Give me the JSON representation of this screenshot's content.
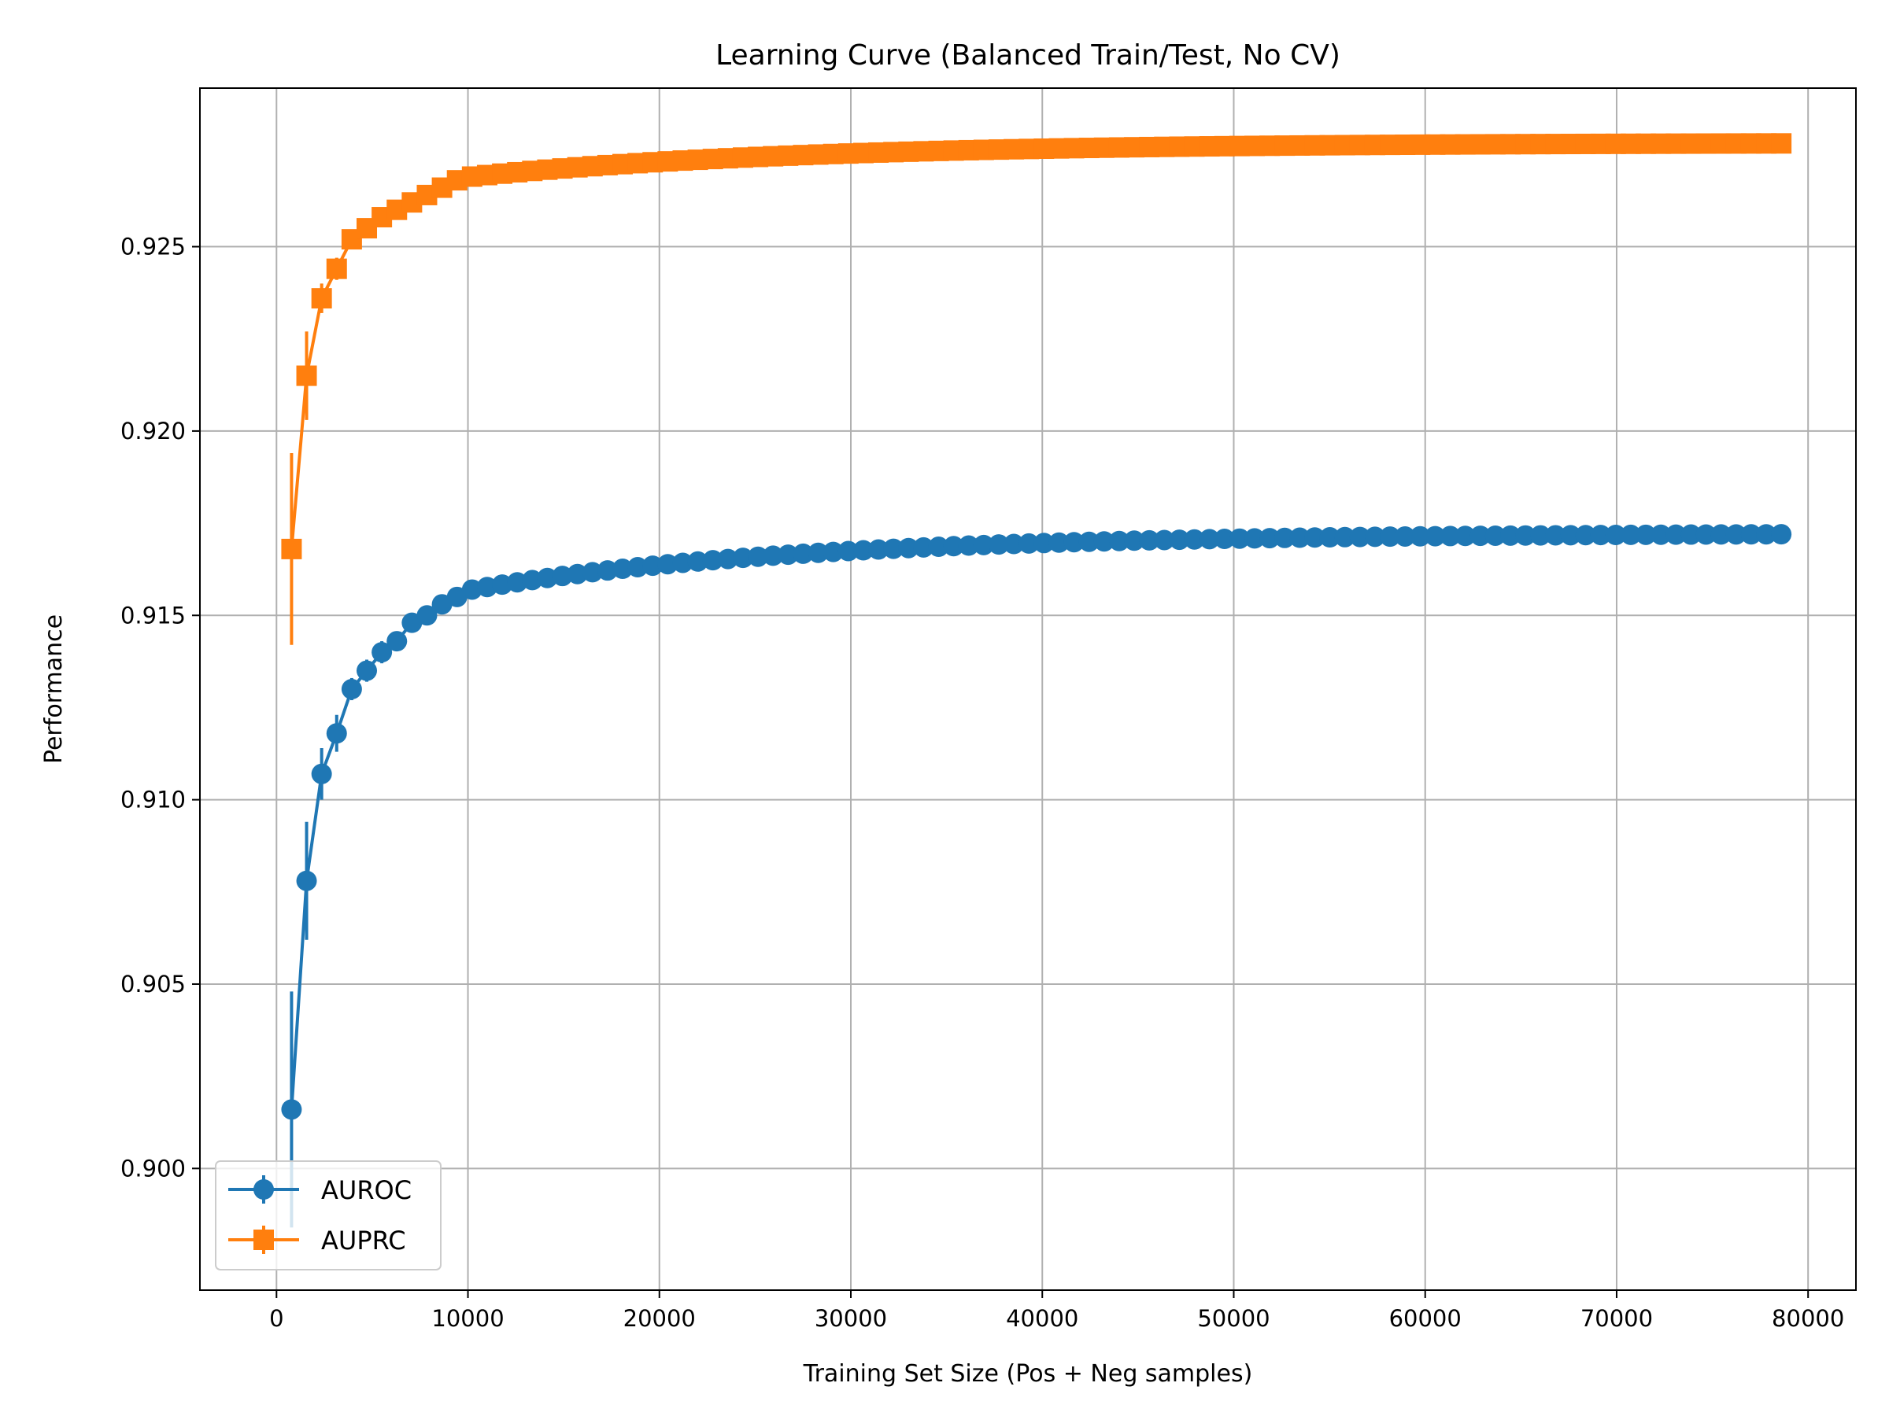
{
  "chart_data": {
    "type": "line",
    "title": "Learning Curve (Balanced Train/Test, No CV)",
    "xlabel": "Training Set Size (Pos + Neg samples)",
    "ylabel": "Performance",
    "xlim": [
      -4000,
      82500
    ],
    "ylim": [
      0.8967,
      0.9293
    ],
    "xticks": [
      0,
      10000,
      20000,
      30000,
      40000,
      50000,
      60000,
      70000,
      80000
    ],
    "xtick_labels": [
      "0",
      "10000",
      "20000",
      "30000",
      "40000",
      "50000",
      "60000",
      "70000",
      "80000"
    ],
    "yticks": [
      0.9,
      0.905,
      0.91,
      0.915,
      0.92,
      0.925
    ],
    "ytick_labels": [
      "0.900",
      "0.905",
      "0.910",
      "0.915",
      "0.920",
      "0.925"
    ],
    "grid": true,
    "legend_position": "lower-left",
    "x_start": 786,
    "x_step": 786,
    "num_points": 100,
    "series": [
      {
        "name": "AUROC",
        "color": "#1f77b4",
        "marker": "circle",
        "values_first": [
          0.9016,
          0.9078,
          0.9107,
          0.9118,
          0.913,
          0.9135,
          0.914,
          0.9143,
          0.9148,
          0.915,
          0.9153,
          0.9155
        ],
        "plateau_start": 0.9157,
        "plateau_end": 0.9172,
        "errors_first": [
          0.0032,
          0.0016,
          0.0007,
          0.0005,
          0.0003,
          0.0003,
          0.0003,
          0.0002
        ],
        "error_rest": 0.00015
      },
      {
        "name": "AUPRC",
        "color": "#ff7f0e",
        "marker": "square",
        "values_first": [
          0.9168,
          0.9215,
          0.9236,
          0.9244,
          0.9252,
          0.9255,
          0.9258,
          0.926,
          0.9262,
          0.9264,
          0.9266,
          0.9268
        ],
        "plateau_start": 0.9269,
        "plateau_end": 0.9278,
        "errors_first": [
          0.0026,
          0.0012,
          0.0004,
          0.0003,
          0.0002,
          0.0002,
          0.00015
        ],
        "error_rest": 0.0001
      }
    ]
  }
}
